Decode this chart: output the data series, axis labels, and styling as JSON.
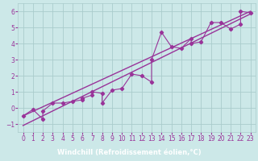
{
  "xlabel": "Windchill (Refroidissement éolien,°C)",
  "background_color": "#cce8e8",
  "grid_color": "#aacccc",
  "line_color": "#993399",
  "xlabel_bg_color": "#993399",
  "xlabel_text_color": "#ffffff",
  "scatter_x": [
    0,
    1,
    2,
    2,
    3,
    4,
    5,
    6,
    6,
    7,
    7,
    8,
    8,
    9,
    10,
    11,
    12,
    13,
    13,
    14,
    15,
    16,
    17,
    17,
    18,
    19,
    20,
    21,
    22,
    22,
    23
  ],
  "scatter_y": [
    -0.5,
    -0.1,
    -0.7,
    -0.2,
    0.3,
    0.3,
    0.4,
    0.5,
    0.6,
    0.8,
    1.0,
    0.9,
    0.3,
    1.1,
    1.2,
    2.1,
    2.0,
    1.6,
    3.0,
    4.7,
    3.8,
    3.7,
    4.3,
    4.0,
    4.1,
    5.3,
    5.3,
    4.9,
    5.2,
    6.0,
    5.9
  ],
  "xlim": [
    -0.5,
    23.5
  ],
  "ylim": [
    -1.5,
    6.5
  ],
  "xticks": [
    0,
    1,
    2,
    3,
    4,
    5,
    6,
    7,
    8,
    9,
    10,
    11,
    12,
    13,
    14,
    15,
    16,
    17,
    18,
    19,
    20,
    21,
    22,
    23
  ],
  "yticks": [
    -1,
    0,
    1,
    2,
    3,
    4,
    5,
    6
  ],
  "tick_fontsize": 5.5,
  "xlabel_fontsize": 6.0
}
